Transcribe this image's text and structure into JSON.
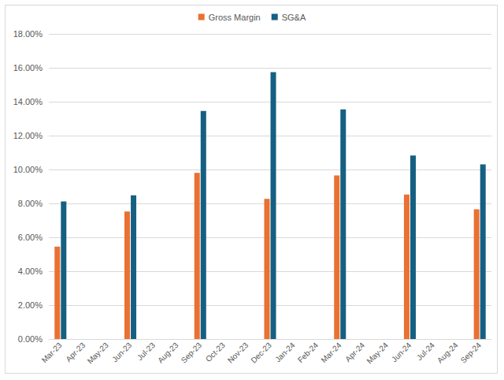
{
  "chart_data": {
    "type": "bar",
    "categories": [
      "Mar-23",
      "Apr-23",
      "May-23",
      "Jun-23",
      "Jul-23",
      "Aug-23",
      "Sep-23",
      "Oct-23",
      "Nov-23",
      "Dec-23",
      "Jan-24",
      "Feb-24",
      "Mar-24",
      "Apr-24",
      "May-24",
      "Jun-24",
      "Jul-24",
      "Aug-24",
      "Sep-24"
    ],
    "series": [
      {
        "name": "Gross Margin",
        "color": "#e97132",
        "values": [
          5.45,
          null,
          null,
          7.52,
          null,
          null,
          9.8,
          null,
          null,
          8.27,
          null,
          null,
          9.65,
          null,
          null,
          8.52,
          null,
          null,
          7.65
        ]
      },
      {
        "name": "SG&A",
        "color": "#156082",
        "values": [
          8.12,
          null,
          null,
          8.48,
          null,
          null,
          13.45,
          null,
          null,
          15.75,
          null,
          null,
          13.55,
          null,
          null,
          10.82,
          null,
          null,
          10.3
        ]
      }
    ],
    "ylim": [
      0,
      18
    ],
    "yticks": [
      {
        "value": 0,
        "label": "0.00%"
      },
      {
        "value": 2,
        "label": "2.00%"
      },
      {
        "value": 4,
        "label": "4.00%"
      },
      {
        "value": 6,
        "label": "6.00%"
      },
      {
        "value": 8,
        "label": "8.00%"
      },
      {
        "value": 10,
        "label": "10.00%"
      },
      {
        "value": 12,
        "label": "12.00%"
      },
      {
        "value": 14,
        "label": "14.00%"
      },
      {
        "value": 16,
        "label": "16.00%"
      },
      {
        "value": 18,
        "label": "18.00%"
      }
    ],
    "grid": true,
    "legend": "top"
  }
}
